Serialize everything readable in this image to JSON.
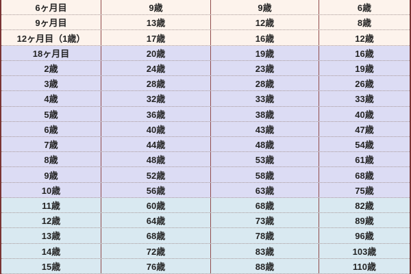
{
  "colors": {
    "cream": "#fdf3ec",
    "lavender": "#dcdcf4",
    "cyan": "#d9e9f1",
    "border_outer": "#7a3434",
    "divider": "#8f4a4a",
    "dotted": "#a79797",
    "text": "#242424"
  },
  "chart_data": {
    "type": "table",
    "rows": [
      {
        "label": "6ヶ月目",
        "values": [
          "9歳",
          "9歳",
          "6歳"
        ],
        "group": "cream"
      },
      {
        "label": "9ヶ月目",
        "values": [
          "13歳",
          "12歳",
          "8歳"
        ],
        "group": "cream"
      },
      {
        "label": "12ヶ月目（1歳）",
        "values": [
          "17歳",
          "16歳",
          "12歳"
        ],
        "group": "cream"
      },
      {
        "label": "18ヶ月目",
        "values": [
          "20歳",
          "19歳",
          "16歳"
        ],
        "group": "lavender"
      },
      {
        "label": "2歳",
        "values": [
          "24歳",
          "23歳",
          "19歳"
        ],
        "group": "lavender"
      },
      {
        "label": "3歳",
        "values": [
          "28歳",
          "28歳",
          "26歳"
        ],
        "group": "lavender"
      },
      {
        "label": "4歳",
        "values": [
          "32歳",
          "33歳",
          "33歳"
        ],
        "group": "lavender"
      },
      {
        "label": "5歳",
        "values": [
          "36歳",
          "38歳",
          "40歳"
        ],
        "group": "lavender"
      },
      {
        "label": "6歳",
        "values": [
          "40歳",
          "43歳",
          "47歳"
        ],
        "group": "lavender"
      },
      {
        "label": "7歳",
        "values": [
          "44歳",
          "48歳",
          "54歳"
        ],
        "group": "lavender"
      },
      {
        "label": "8歳",
        "values": [
          "48歳",
          "53歳",
          "61歳"
        ],
        "group": "lavender"
      },
      {
        "label": "9歳",
        "values": [
          "52歳",
          "58歳",
          "68歳"
        ],
        "group": "lavender"
      },
      {
        "label": "10歳",
        "values": [
          "56歳",
          "63歳",
          "75歳"
        ],
        "group": "lavender"
      },
      {
        "label": "11歳",
        "values": [
          "60歳",
          "68歳",
          "82歳"
        ],
        "group": "cyan"
      },
      {
        "label": "12歳",
        "values": [
          "64歳",
          "73歳",
          "89歳"
        ],
        "group": "cyan"
      },
      {
        "label": "13歳",
        "values": [
          "68歳",
          "78歳",
          "96歳"
        ],
        "group": "cyan"
      },
      {
        "label": "14歳",
        "values": [
          "72歳",
          "83歳",
          "103歳"
        ],
        "group": "cyan"
      },
      {
        "label": "15歳",
        "values": [
          "76歳",
          "88歳",
          "110歳"
        ],
        "group": "cyan"
      }
    ]
  }
}
